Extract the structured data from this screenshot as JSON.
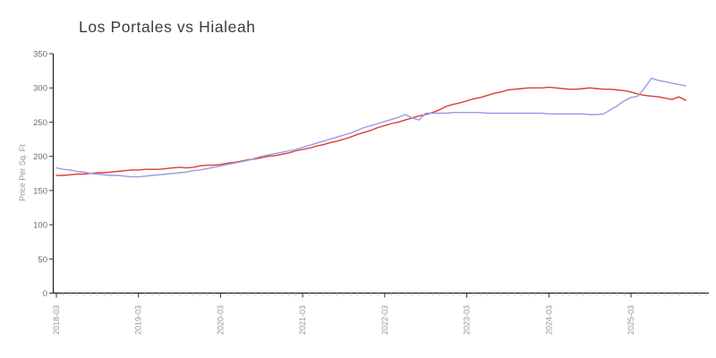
{
  "chart_data": {
    "type": "line",
    "title": "Los Portales vs Hialeah",
    "xlabel": "",
    "ylabel": "Price Per Sq. Ft",
    "ylim": [
      0,
      350
    ],
    "yticks": [
      0,
      50,
      100,
      150,
      200,
      250,
      300,
      350
    ],
    "x_major_tick_labels": [
      "2018-03",
      "2019-03",
      "2020-03",
      "2021-03",
      "2022-03",
      "2023-03",
      "2024-03",
      "2025-03"
    ],
    "x_minor_tick_unit": "month",
    "x_axis_months_total": 96,
    "grid": false,
    "legend": "none",
    "tick_label_rotation_deg": -90,
    "x": [
      "2018-03",
      "2018-04",
      "2018-05",
      "2018-06",
      "2018-07",
      "2018-08",
      "2018-09",
      "2018-10",
      "2018-11",
      "2018-12",
      "2019-01",
      "2019-02",
      "2019-03",
      "2019-04",
      "2019-05",
      "2019-06",
      "2019-07",
      "2019-08",
      "2019-09",
      "2019-10",
      "2019-11",
      "2019-12",
      "2020-01",
      "2020-02",
      "2020-03",
      "2020-04",
      "2020-05",
      "2020-06",
      "2020-07",
      "2020-08",
      "2020-09",
      "2020-10",
      "2020-11",
      "2020-12",
      "2021-01",
      "2021-02",
      "2021-03",
      "2021-04",
      "2021-05",
      "2021-06",
      "2021-07",
      "2021-08",
      "2021-09",
      "2021-10",
      "2021-11",
      "2021-12",
      "2022-01",
      "2022-02",
      "2022-03",
      "2022-04",
      "2022-05",
      "2022-06",
      "2022-07",
      "2022-08",
      "2022-09",
      "2022-10",
      "2022-11",
      "2022-12",
      "2023-01",
      "2023-02",
      "2023-03",
      "2023-04",
      "2023-05",
      "2023-06",
      "2023-07",
      "2023-08",
      "2023-09",
      "2023-10",
      "2023-11",
      "2023-12",
      "2024-01",
      "2024-02",
      "2024-03",
      "2024-04",
      "2024-05",
      "2024-06",
      "2024-07",
      "2024-08",
      "2024-09",
      "2024-10",
      "2024-11",
      "2024-12",
      "2025-01",
      "2025-02",
      "2025-03",
      "2025-04",
      "2025-05",
      "2025-06",
      "2025-07",
      "2025-08",
      "2025-09",
      "2025-10",
      "2025-11"
    ],
    "series": [
      {
        "name": "Los Portales",
        "color": "#9a9ae6",
        "values": [
          183,
          181,
          180,
          178,
          177,
          175,
          174,
          173,
          172,
          172,
          171,
          170,
          170,
          171,
          172,
          173,
          174,
          175,
          176,
          177,
          179,
          180,
          182,
          184,
          186,
          188,
          190,
          192,
          194,
          197,
          200,
          202,
          204,
          206,
          208,
          210,
          213,
          216,
          219,
          222,
          225,
          228,
          231,
          234,
          238,
          242,
          245,
          248,
          251,
          254,
          257,
          261,
          256,
          253,
          263,
          263,
          263,
          263,
          264,
          264,
          264,
          264,
          264,
          263,
          263,
          263,
          263,
          263,
          263,
          263,
          263,
          263,
          262,
          262,
          262,
          262,
          262,
          262,
          261,
          261,
          262,
          268,
          274,
          281,
          286,
          288,
          300,
          314,
          311,
          309,
          307,
          305,
          303
        ]
      },
      {
        "name": "Hialeah",
        "color": "#dd3c35",
        "values": [
          172,
          172,
          173,
          174,
          174,
          175,
          176,
          176,
          177,
          178,
          179,
          180,
          180,
          181,
          181,
          181,
          182,
          183,
          184,
          183,
          184,
          186,
          187,
          187,
          188,
          190,
          191,
          193,
          195,
          196,
          198,
          200,
          201,
          203,
          205,
          208,
          210,
          212,
          215,
          217,
          220,
          222,
          225,
          228,
          232,
          235,
          238,
          242,
          245,
          248,
          250,
          253,
          256,
          259,
          261,
          264,
          268,
          273,
          276,
          278,
          281,
          284,
          286,
          289,
          292,
          294,
          297,
          298,
          299,
          300,
          300,
          300,
          301,
          300,
          299,
          298,
          298,
          299,
          300,
          299,
          298,
          298,
          297,
          296,
          294,
          291,
          289,
          288,
          287,
          285,
          283,
          287,
          282
        ]
      }
    ]
  }
}
